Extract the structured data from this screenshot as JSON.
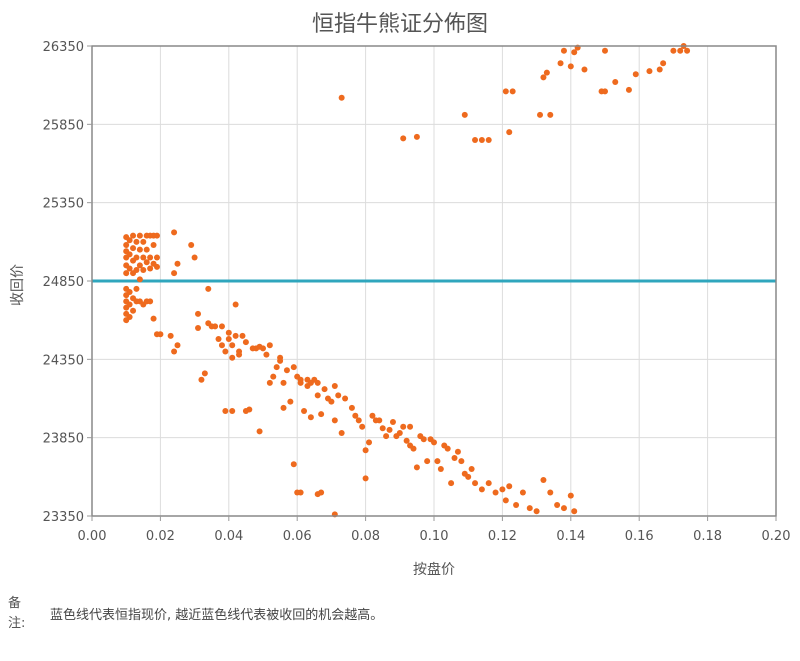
{
  "chart_data": {
    "type": "scatter",
    "title": "恒指牛熊证分佈图",
    "xlabel": "按盘价",
    "ylabel": "收回价",
    "xlim": [
      0,
      0.2
    ],
    "ylim": [
      23350,
      26350
    ],
    "x_ticks": [
      "0.00",
      "0.02",
      "0.04",
      "0.06",
      "0.08",
      "0.10",
      "0.12",
      "0.14",
      "0.16",
      "0.18",
      "0.20"
    ],
    "y_ticks": [
      "23350",
      "23850",
      "24350",
      "24850",
      "25350",
      "25850",
      "26350"
    ],
    "grid": true,
    "reference_line": {
      "y": 24850,
      "color": "#2fa6bd"
    },
    "series": [
      {
        "color": "#ee6a1e",
        "points": [
          [
            0.01,
            25130
          ],
          [
            0.01,
            25080
          ],
          [
            0.01,
            25040
          ],
          [
            0.01,
            25000
          ],
          [
            0.01,
            24950
          ],
          [
            0.01,
            24900
          ],
          [
            0.01,
            24800
          ],
          [
            0.01,
            24760
          ],
          [
            0.01,
            24720
          ],
          [
            0.01,
            24680
          ],
          [
            0.01,
            24640
          ],
          [
            0.01,
            24600
          ],
          [
            0.011,
            25110
          ],
          [
            0.011,
            25020
          ],
          [
            0.011,
            24930
          ],
          [
            0.011,
            24780
          ],
          [
            0.011,
            24700
          ],
          [
            0.011,
            24620
          ],
          [
            0.012,
            25140
          ],
          [
            0.012,
            25060
          ],
          [
            0.012,
            24980
          ],
          [
            0.012,
            24900
          ],
          [
            0.012,
            24740
          ],
          [
            0.012,
            24660
          ],
          [
            0.013,
            25100
          ],
          [
            0.013,
            25000
          ],
          [
            0.013,
            24920
          ],
          [
            0.013,
            24800
          ],
          [
            0.013,
            24720
          ],
          [
            0.014,
            25140
          ],
          [
            0.014,
            25050
          ],
          [
            0.014,
            24950
          ],
          [
            0.014,
            24860
          ],
          [
            0.014,
            24720
          ],
          [
            0.015,
            25100
          ],
          [
            0.015,
            25000
          ],
          [
            0.015,
            24920
          ],
          [
            0.015,
            24700
          ],
          [
            0.016,
            25140
          ],
          [
            0.016,
            25050
          ],
          [
            0.016,
            24970
          ],
          [
            0.016,
            24720
          ],
          [
            0.017,
            25140
          ],
          [
            0.017,
            25000
          ],
          [
            0.017,
            24930
          ],
          [
            0.017,
            24720
          ],
          [
            0.018,
            25140
          ],
          [
            0.018,
            25080
          ],
          [
            0.018,
            24960
          ],
          [
            0.019,
            25140
          ],
          [
            0.019,
            25000
          ],
          [
            0.019,
            24940
          ],
          [
            0.018,
            24610
          ],
          [
            0.019,
            24510
          ],
          [
            0.02,
            24510
          ],
          [
            0.023,
            24500
          ],
          [
            0.024,
            24400
          ],
          [
            0.025,
            24440
          ],
          [
            0.024,
            25160
          ],
          [
            0.024,
            24900
          ],
          [
            0.025,
            24960
          ],
          [
            0.029,
            25080
          ],
          [
            0.03,
            25000
          ],
          [
            0.031,
            24550
          ],
          [
            0.031,
            24640
          ],
          [
            0.032,
            24220
          ],
          [
            0.033,
            24260
          ],
          [
            0.034,
            24580
          ],
          [
            0.034,
            24800
          ],
          [
            0.035,
            24560
          ],
          [
            0.036,
            24560
          ],
          [
            0.037,
            24480
          ],
          [
            0.038,
            24560
          ],
          [
            0.038,
            24440
          ],
          [
            0.039,
            24400
          ],
          [
            0.039,
            24020
          ],
          [
            0.04,
            24520
          ],
          [
            0.04,
            24480
          ],
          [
            0.041,
            24440
          ],
          [
            0.041,
            24360
          ],
          [
            0.041,
            24020
          ],
          [
            0.042,
            24700
          ],
          [
            0.042,
            24500
          ],
          [
            0.043,
            24400
          ],
          [
            0.043,
            24380
          ],
          [
            0.044,
            24500
          ],
          [
            0.045,
            24460
          ],
          [
            0.045,
            24020
          ],
          [
            0.046,
            24030
          ],
          [
            0.047,
            24420
          ],
          [
            0.048,
            24420
          ],
          [
            0.049,
            24430
          ],
          [
            0.05,
            24420
          ],
          [
            0.051,
            24380
          ],
          [
            0.049,
            23890
          ],
          [
            0.052,
            24440
          ],
          [
            0.052,
            24200
          ],
          [
            0.053,
            24240
          ],
          [
            0.054,
            24300
          ],
          [
            0.055,
            24340
          ],
          [
            0.055,
            24360
          ],
          [
            0.056,
            24200
          ],
          [
            0.056,
            24040
          ],
          [
            0.057,
            24280
          ],
          [
            0.058,
            24080
          ],
          [
            0.059,
            24300
          ],
          [
            0.06,
            24240
          ],
          [
            0.061,
            24200
          ],
          [
            0.061,
            24220
          ],
          [
            0.062,
            24020
          ],
          [
            0.063,
            24180
          ],
          [
            0.063,
            24220
          ],
          [
            0.064,
            24200
          ],
          [
            0.064,
            23980
          ],
          [
            0.065,
            24220
          ],
          [
            0.066,
            24200
          ],
          [
            0.066,
            24120
          ],
          [
            0.067,
            24000
          ],
          [
            0.068,
            24160
          ],
          [
            0.069,
            24100
          ],
          [
            0.07,
            24080
          ],
          [
            0.071,
            23960
          ],
          [
            0.071,
            24180
          ],
          [
            0.072,
            24120
          ],
          [
            0.073,
            23880
          ],
          [
            0.074,
            24100
          ],
          [
            0.076,
            24040
          ],
          [
            0.077,
            23990
          ],
          [
            0.078,
            23960
          ],
          [
            0.079,
            23920
          ],
          [
            0.08,
            23770
          ],
          [
            0.081,
            23820
          ],
          [
            0.082,
            23990
          ],
          [
            0.083,
            23960
          ],
          [
            0.084,
            23960
          ],
          [
            0.085,
            23910
          ],
          [
            0.086,
            23860
          ],
          [
            0.087,
            23900
          ],
          [
            0.088,
            23950
          ],
          [
            0.089,
            23860
          ],
          [
            0.09,
            23880
          ],
          [
            0.091,
            23920
          ],
          [
            0.092,
            23830
          ],
          [
            0.093,
            23800
          ],
          [
            0.093,
            23920
          ],
          [
            0.094,
            23780
          ],
          [
            0.095,
            23660
          ],
          [
            0.096,
            23860
          ],
          [
            0.097,
            23840
          ],
          [
            0.098,
            23700
          ],
          [
            0.099,
            23840
          ],
          [
            0.1,
            23820
          ],
          [
            0.101,
            23700
          ],
          [
            0.102,
            23650
          ],
          [
            0.103,
            23800
          ],
          [
            0.104,
            23780
          ],
          [
            0.105,
            23560
          ],
          [
            0.106,
            23720
          ],
          [
            0.107,
            23760
          ],
          [
            0.108,
            23700
          ],
          [
            0.109,
            23620
          ],
          [
            0.11,
            23600
          ],
          [
            0.111,
            23650
          ],
          [
            0.112,
            23560
          ],
          [
            0.114,
            23520
          ],
          [
            0.116,
            23560
          ],
          [
            0.118,
            23500
          ],
          [
            0.12,
            23520
          ],
          [
            0.121,
            23450
          ],
          [
            0.122,
            23540
          ],
          [
            0.124,
            23420
          ],
          [
            0.126,
            23500
          ],
          [
            0.128,
            23400
          ],
          [
            0.13,
            23380
          ],
          [
            0.132,
            23580
          ],
          [
            0.134,
            23500
          ],
          [
            0.136,
            23420
          ],
          [
            0.138,
            23400
          ],
          [
            0.14,
            23480
          ],
          [
            0.141,
            23380
          ],
          [
            0.059,
            23680
          ],
          [
            0.06,
            23500
          ],
          [
            0.061,
            23500
          ],
          [
            0.066,
            23490
          ],
          [
            0.067,
            23500
          ],
          [
            0.071,
            23360
          ],
          [
            0.08,
            23590
          ],
          [
            0.073,
            26020
          ],
          [
            0.091,
            25760
          ],
          [
            0.095,
            25770
          ],
          [
            0.109,
            25910
          ],
          [
            0.112,
            25750
          ],
          [
            0.114,
            25750
          ],
          [
            0.116,
            25750
          ],
          [
            0.121,
            26060
          ],
          [
            0.122,
            25800
          ],
          [
            0.123,
            26060
          ],
          [
            0.131,
            25910
          ],
          [
            0.132,
            26150
          ],
          [
            0.133,
            26180
          ],
          [
            0.134,
            25910
          ],
          [
            0.137,
            26240
          ],
          [
            0.138,
            26320
          ],
          [
            0.14,
            26220
          ],
          [
            0.141,
            26310
          ],
          [
            0.142,
            26340
          ],
          [
            0.144,
            26200
          ],
          [
            0.149,
            26060
          ],
          [
            0.15,
            26060
          ],
          [
            0.15,
            26320
          ],
          [
            0.153,
            26120
          ],
          [
            0.157,
            26070
          ],
          [
            0.159,
            26170
          ],
          [
            0.163,
            26190
          ],
          [
            0.166,
            26200
          ],
          [
            0.167,
            26240
          ],
          [
            0.17,
            26320
          ],
          [
            0.172,
            26320
          ],
          [
            0.173,
            26350
          ],
          [
            0.174,
            26320
          ]
        ]
      }
    ]
  },
  "note": {
    "label": "备注:",
    "text": "蓝色线代表恒指现价, 越近蓝色线代表被收回的机会越高。"
  }
}
